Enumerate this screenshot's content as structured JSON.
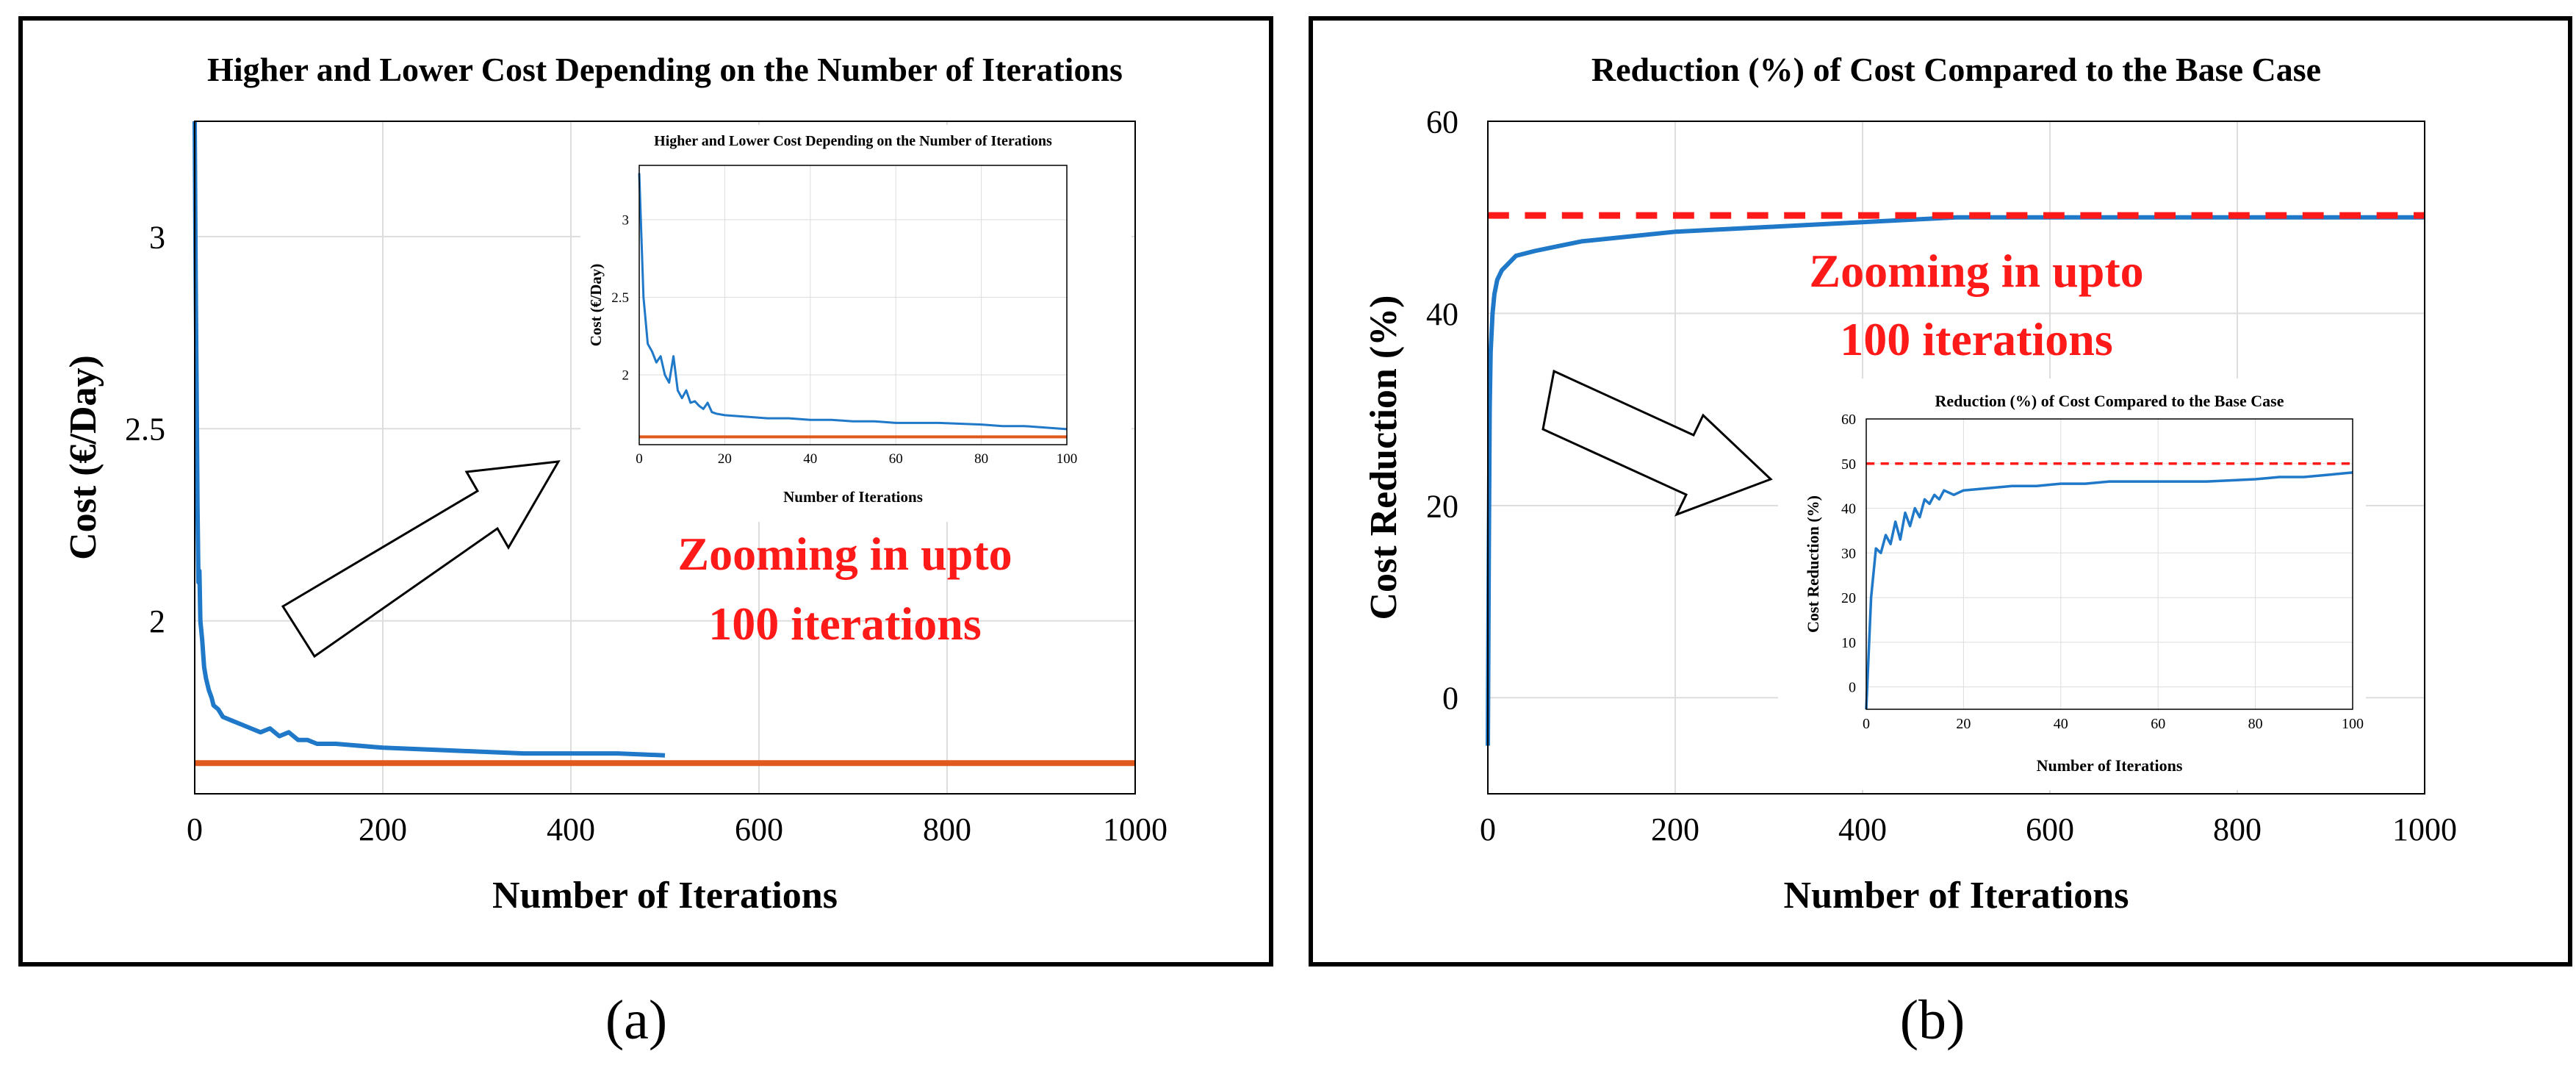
{
  "colors": {
    "cost_line": "#1f78c8",
    "min_line": "#e05a1e",
    "reduction_line": "#1f78c8",
    "reference_line": "#ff1a1a",
    "annotation": "#ff1a1a",
    "grid": "#dddddd",
    "frame": "#000000"
  },
  "panel_a": {
    "caption": "(a)",
    "annotation_line1": "Zooming in upto",
    "annotation_line2": "100 iterations"
  },
  "panel_b": {
    "caption": "(b)",
    "annotation_line1": "Zooming in upto",
    "annotation_line2": "100 iterations"
  },
  "chart_data": [
    {
      "id": "a_main",
      "type": "line",
      "title": "Higher and Lower Cost Depending on the Number of Iterations",
      "xlabel": "Number of Iterations",
      "ylabel": "Cost (€/Day)",
      "xlim": [
        0,
        1000
      ],
      "ylim": [
        1.55,
        3.3
      ],
      "xticks": [
        0,
        200,
        400,
        600,
        800,
        1000
      ],
      "yticks": [
        2,
        2.5,
        3
      ],
      "grid": true,
      "series": [
        {
          "name": "Cost",
          "color_key": "cost_line",
          "x": [
            0,
            1,
            2,
            3,
            4,
            5,
            6,
            8,
            10,
            12,
            15,
            18,
            20,
            25,
            30,
            40,
            50,
            60,
            70,
            80,
            90,
            100,
            110,
            120,
            130,
            150,
            200,
            250,
            300,
            350,
            400,
            450,
            500
          ],
          "y": [
            3.3,
            2.9,
            2.6,
            2.3,
            2.1,
            2.13,
            2.0,
            1.95,
            1.88,
            1.85,
            1.82,
            1.8,
            1.78,
            1.77,
            1.75,
            1.74,
            1.73,
            1.72,
            1.71,
            1.72,
            1.7,
            1.71,
            1.69,
            1.69,
            1.68,
            1.68,
            1.67,
            1.665,
            1.66,
            1.655,
            1.655,
            1.655,
            1.65
          ]
        },
        {
          "name": "Lower cost",
          "color_key": "min_line",
          "x": [
            0,
            1000
          ],
          "y": [
            1.63,
            1.63
          ]
        }
      ]
    },
    {
      "id": "a_inset",
      "type": "line",
      "title": "Higher and Lower Cost Depending on the Number of Iterations",
      "xlabel": "Number of Iterations",
      "ylabel": "Cost (€/Day)",
      "xlim": [
        0,
        100
      ],
      "ylim": [
        1.55,
        3.35
      ],
      "xticks": [
        0,
        20,
        40,
        60,
        80,
        100
      ],
      "yticks": [
        2,
        2.5,
        3
      ],
      "grid": true,
      "series": [
        {
          "name": "Cost",
          "color_key": "cost_line",
          "x": [
            0,
            1,
            2,
            3,
            4,
            5,
            6,
            7,
            8,
            9,
            10,
            11,
            12,
            13,
            14,
            15,
            16,
            17,
            18,
            20,
            25,
            30,
            35,
            40,
            45,
            50,
            55,
            60,
            70,
            80,
            85,
            90,
            95,
            100
          ],
          "y": [
            3.3,
            2.5,
            2.2,
            2.15,
            2.08,
            2.12,
            2.0,
            1.95,
            2.12,
            1.9,
            1.85,
            1.9,
            1.82,
            1.83,
            1.8,
            1.78,
            1.82,
            1.76,
            1.75,
            1.74,
            1.73,
            1.72,
            1.72,
            1.71,
            1.71,
            1.7,
            1.7,
            1.69,
            1.69,
            1.68,
            1.67,
            1.67,
            1.66,
            1.65
          ]
        },
        {
          "name": "Lower cost",
          "color_key": "min_line",
          "x": [
            0,
            100
          ],
          "y": [
            1.6,
            1.6
          ]
        }
      ]
    },
    {
      "id": "b_main",
      "type": "line",
      "title": "Reduction (%) of Cost Compared to the Base Case",
      "xlabel": "Number of Iterations",
      "ylabel": "Cost Reduction (%)",
      "xlim": [
        0,
        1000
      ],
      "ylim": [
        -10,
        60
      ],
      "xticks": [
        0,
        200,
        400,
        600,
        800,
        1000
      ],
      "yticks": [
        0,
        20,
        40,
        60
      ],
      "grid": true,
      "series": [
        {
          "name": "Cost reduction",
          "color_key": "reduction_line",
          "x": [
            0,
            1,
            2,
            3,
            5,
            7,
            10,
            15,
            20,
            30,
            50,
            75,
            100,
            150,
            200,
            300,
            400,
            500,
            600,
            800,
            1000
          ],
          "y": [
            -5,
            15,
            30,
            36,
            40,
            42,
            43.5,
            44.5,
            45,
            46,
            46.5,
            47,
            47.5,
            48,
            48.5,
            49,
            49.5,
            50,
            50,
            50,
            50
          ]
        },
        {
          "name": "Maximum reduction",
          "color_key": "reference_line",
          "dashed": true,
          "x": [
            0,
            1000
          ],
          "y": [
            50.2,
            50.2
          ]
        }
      ]
    },
    {
      "id": "b_inset",
      "type": "line",
      "title": "Reduction (%) of Cost Compared to the Base Case",
      "xlabel": "Number of Iterations",
      "ylabel": "Cost Reduction (%)",
      "xlim": [
        0,
        100
      ],
      "ylim": [
        -5,
        60
      ],
      "xticks": [
        0,
        20,
        40,
        60,
        80,
        100
      ],
      "yticks": [
        0,
        10,
        20,
        30,
        40,
        50,
        60
      ],
      "grid": true,
      "series": [
        {
          "name": "Cost reduction",
          "color_key": "reduction_line",
          "x": [
            0,
            1,
            2,
            3,
            4,
            5,
            6,
            7,
            8,
            9,
            10,
            11,
            12,
            13,
            14,
            15,
            16,
            18,
            20,
            25,
            30,
            35,
            40,
            45,
            50,
            55,
            60,
            70,
            80,
            85,
            90,
            95,
            100
          ],
          "y": [
            -5,
            20,
            31,
            30,
            34,
            32,
            37,
            33,
            39,
            36,
            40,
            38,
            42,
            41,
            43,
            42,
            44,
            43,
            44,
            44.5,
            45,
            45,
            45.5,
            45.5,
            46,
            46,
            46,
            46,
            46.5,
            47,
            47,
            47.5,
            48
          ]
        },
        {
          "name": "Maximum reduction",
          "color_key": "reference_line",
          "dashed": true,
          "x": [
            0,
            100
          ],
          "y": [
            50,
            50
          ]
        }
      ]
    }
  ]
}
